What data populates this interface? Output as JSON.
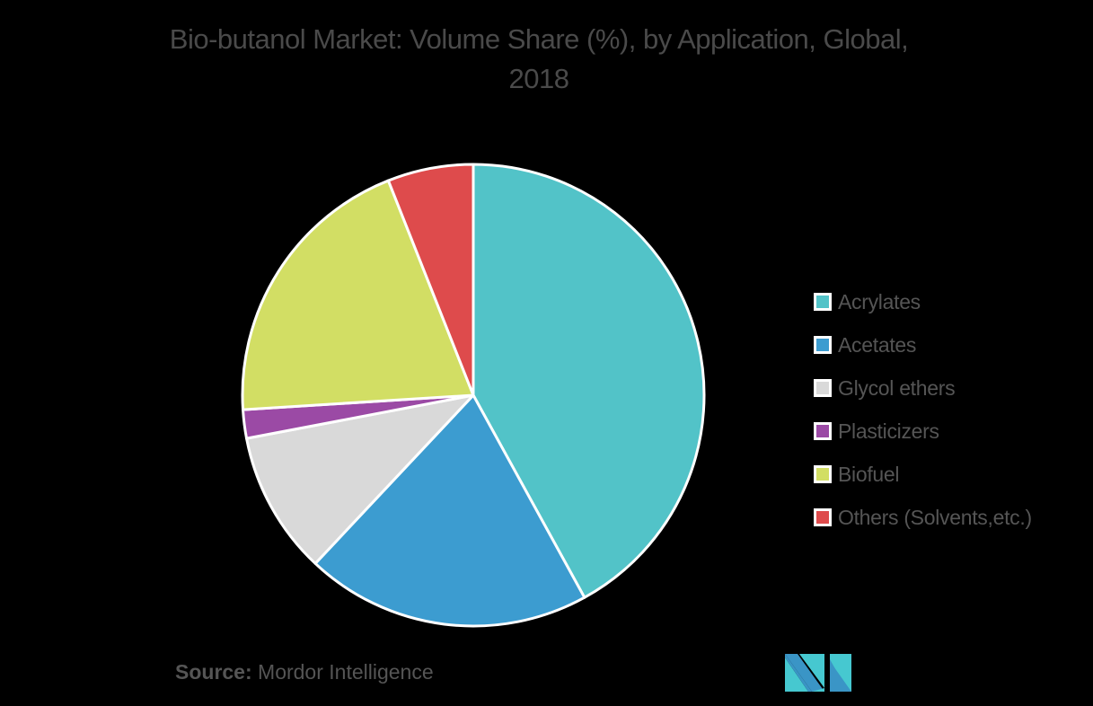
{
  "chart_data": {
    "type": "pie",
    "title": "Bio-butanol Market: Volume Share (%), by Application, Global, 2018",
    "categories": [
      "Acrylates",
      "Acetates",
      "Glycol ethers",
      "Plasticizers",
      "Biofuel",
      "Others (Solvents,etc.)"
    ],
    "values": [
      42,
      20,
      10,
      2,
      20,
      6
    ],
    "colors": [
      "#52C3C8",
      "#3C9CD0",
      "#D9D9D9",
      "#9B4AA5",
      "#D2DE64",
      "#DE4B4C"
    ],
    "start_angle": "top",
    "direction": "clockwise",
    "legend_position": "right",
    "slice_border_color": "#FFFFFF"
  },
  "header": {
    "title_line1": "Bio-butanol Market: Volume Share (%), by Application, Global,",
    "title_line2": "2018"
  },
  "legend": {
    "items": [
      {
        "label": "Acrylates",
        "color": "#52C3C8"
      },
      {
        "label": "Acetates",
        "color": "#3C9CD0"
      },
      {
        "label": "Glycol ethers",
        "color": "#D9D9D9"
      },
      {
        "label": "Plasticizers",
        "color": "#9B4AA5"
      },
      {
        "label": "Biofuel",
        "color": "#D2DE64"
      },
      {
        "label": "Others (Solvents,etc.)",
        "color": "#DE4B4C"
      }
    ]
  },
  "footer": {
    "source_label": "Source:",
    "source_value": " Mordor Intelligence",
    "logo": "mordor-intelligence-logo"
  }
}
